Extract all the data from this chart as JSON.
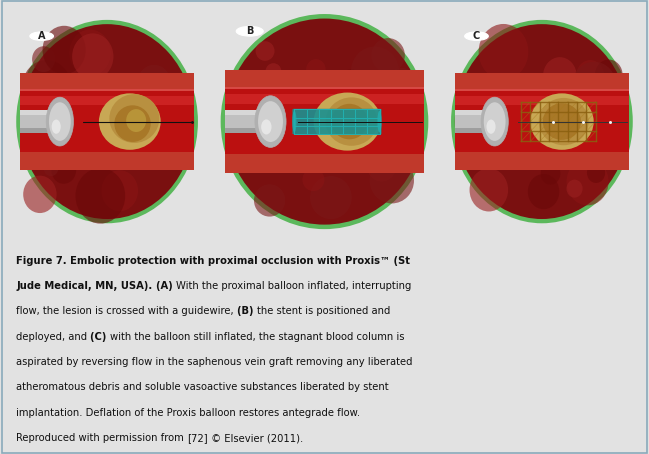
{
  "panel_labels": [
    "A",
    "B",
    "C"
  ],
  "top_bg": "#b8d4e4",
  "bottom_bg": "#e2e2e2",
  "green_ring": "#5cb85c",
  "vessel_outer": "#8B2020",
  "vessel_wall": "#c0392b",
  "vessel_lumen_red": "#cc2020",
  "vessel_lumen_bright": "#dd3030",
  "tissue_bg": "#7a1515",
  "plaque_color": "#c8a050",
  "plaque_dark": "#a07828",
  "balloon_gray": "#909090",
  "balloon_dark": "#555555",
  "stent_teal": "#1a9090",
  "stent_teal_light": "#20b0b0",
  "stent_brown": "#8B6010",
  "stent_brown_light": "#aa7818",
  "guidewire": "#222222",
  "label_circle_bg": "#ffffff",
  "label_circle_edge": "#444444",
  "caption_color": "#111111",
  "figure_width": 6.49,
  "figure_height": 4.54,
  "caption_lines": [
    [
      [
        "Figure 7. Embolic protection with proximal occlusion with Proxis™ (St",
        true
      ]
    ],
    [
      [
        "Jude Medical, MN, USA). ",
        true
      ],
      [
        "(A) ",
        true
      ],
      [
        "With the proximal balloon inflated, interrupting",
        false
      ]
    ],
    [
      [
        "flow, the lesion is crossed with a guidewire, ",
        false
      ],
      [
        "(B) ",
        true
      ],
      [
        "the stent is positioned and",
        false
      ]
    ],
    [
      [
        "deployed, and ",
        false
      ],
      [
        "(C) ",
        true
      ],
      [
        "with the balloon still inflated, the stagnant blood column is",
        false
      ]
    ],
    [
      [
        "aspirated by reversing flow in the saphenous vein graft removing any liberated",
        false
      ]
    ],
    [
      [
        "atheromatous debris and soluble vasoactive substances liberated by stent",
        false
      ]
    ],
    [
      [
        "implantation. Deflation of the Proxis balloon restores antegrade flow.",
        false
      ]
    ],
    [
      [
        "Reproduced with permission from ",
        false
      ],
      [
        "[72]",
        false
      ],
      [
        " © Elsevier (2011).",
        false
      ]
    ]
  ]
}
